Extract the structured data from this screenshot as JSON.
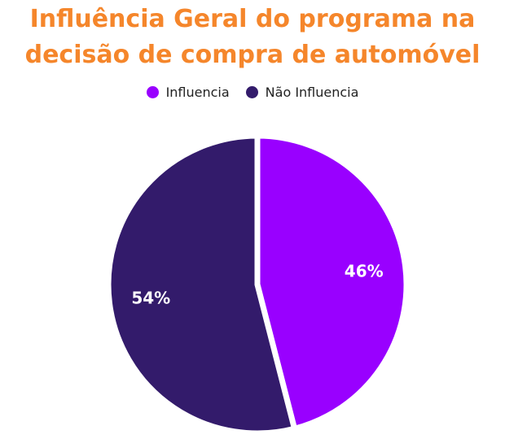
{
  "title_lines": [
    "Influência Geral do programa na",
    "decisão de compra de automóvel"
  ],
  "chart_data": {
    "type": "pie",
    "title": "Influência Geral do programa na decisão de compra de automóvel",
    "legend_position": "top",
    "slices": [
      {
        "name": "Influencia",
        "value": 46,
        "label": "46%",
        "color": "#9900FF"
      },
      {
        "name": "Não Influencia",
        "value": 54,
        "label": "54%",
        "color": "#331B6B"
      }
    ]
  },
  "colors": {
    "title": "#F5862B",
    "separator": "#ffffff",
    "label_text": "#ffffff"
  }
}
